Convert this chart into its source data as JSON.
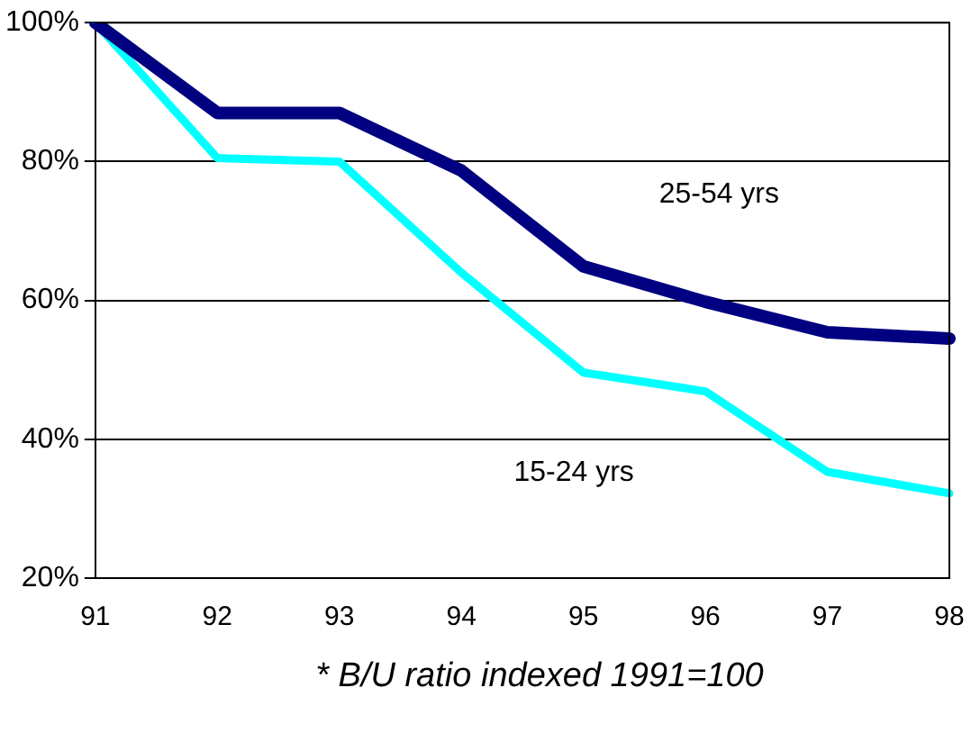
{
  "chart_data": {
    "type": "line",
    "categories": [
      "91",
      "92",
      "93",
      "94",
      "95",
      "96",
      "97",
      "98"
    ],
    "series": [
      {
        "name": "25-54 yrs",
        "color": "#000080",
        "values": [
          100,
          87,
          87,
          78.7,
          64.9,
          59.8,
          55.4,
          54.5
        ]
      },
      {
        "name": "15-24 yrs",
        "color": "#00ffff",
        "values": [
          100,
          80.5,
          80,
          64,
          49.6,
          46.9,
          35.3,
          32.2
        ]
      }
    ],
    "ylim": [
      20,
      100
    ],
    "yticks": [
      {
        "value": 20,
        "label": "20%"
      },
      {
        "value": 40,
        "label": "40%"
      },
      {
        "value": 60,
        "label": "60%"
      },
      {
        "value": 80,
        "label": "80%"
      },
      {
        "value": 100,
        "label": "100%"
      }
    ],
    "grid": "y",
    "legend": false,
    "marker": "none",
    "line_style": "solid",
    "annotations": [
      "* B/U ratio indexed 1991=100"
    ]
  }
}
